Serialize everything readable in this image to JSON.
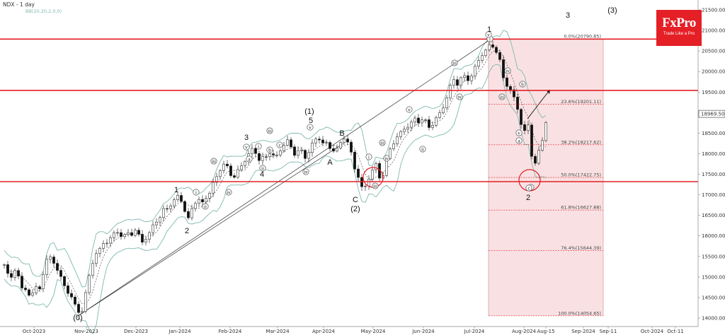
{
  "header": {
    "symbol_label": "NDX - 1 day",
    "indicator_label": "BB(20,20,2,0,0)"
  },
  "logo": {
    "name": "FxPro",
    "tagline": "Trade Like a Pro"
  },
  "colors": {
    "up_candle": "#ffffff",
    "down_candle": "#111111",
    "bands": "#7fb8b0",
    "resistance_lines": "#e41f26",
    "fib_zone": "#f7d7da",
    "fib_lines": "#e41f26"
  },
  "chart_data": {
    "type": "candlestick",
    "title": "NDX - 1 day",
    "ylim": [
      13900,
      21700
    ],
    "y_ticks": [
      "21500.00",
      "21000.00",
      "20500.00",
      "20000.00",
      "19500.00",
      "19000.00",
      "18500.00",
      "18000.00",
      "17500.00",
      "17000.00",
      "16500.00",
      "16000.00",
      "15500.00",
      "15000.00",
      "14500.00",
      "14000.00"
    ],
    "x_ticks": [
      "Oct-2023",
      "Nov-2023",
      "Dec-2023",
      "Jan-2024",
      "Feb-2024",
      "Mar-2024",
      "Apr-2024",
      "May-2024",
      "Jun-2024",
      "Jul-2024",
      "Aug-2024",
      "Aug-15",
      "Sep-2024",
      "Sep-11",
      "Oct-2024",
      "Oct-11"
    ],
    "current_price": "18969.50",
    "horizontal_levels": [
      20790,
      19540,
      17320
    ],
    "fibonacci": [
      {
        "label": "0.0%(20790.85)",
        "value": 20790.85
      },
      {
        "label": "23.6%(19201.11)",
        "value": 19201.11
      },
      {
        "label": "38.2%(18217.62)",
        "value": 18217.62
      },
      {
        "label": "50.0%(17422.75)",
        "value": 17422.75
      },
      {
        "label": "61.8%(16627.88)",
        "value": 16627.88
      },
      {
        "label": "76.4%(15644.39)",
        "value": 15644.39
      },
      {
        "label": "100.0%(14054.65)",
        "value": 14054.65
      }
    ],
    "close_series": [
      [
        0,
        15300
      ],
      [
        4,
        15150
      ],
      [
        8,
        15050
      ],
      [
        12,
        14900
      ],
      [
        16,
        15200
      ],
      [
        20,
        15050
      ],
      [
        24,
        14800
      ],
      [
        28,
        14600
      ],
      [
        32,
        14700
      ],
      [
        36,
        14500
      ],
      [
        40,
        14650
      ],
      [
        44,
        14800
      ],
      [
        48,
        14600
      ],
      [
        52,
        14750
      ],
      [
        56,
        15200
      ],
      [
        60,
        15450
      ],
      [
        64,
        15500
      ],
      [
        68,
        15300
      ],
      [
        72,
        15350
      ],
      [
        76,
        15150
      ],
      [
        80,
        15000
      ],
      [
        84,
        14800
      ],
      [
        88,
        14600
      ],
      [
        92,
        14650
      ],
      [
        96,
        14500
      ],
      [
        100,
        14300
      ],
      [
        104,
        14150
      ],
      [
        108,
        14050
      ],
      [
        112,
        14350
      ],
      [
        116,
        14700
      ],
      [
        120,
        15000
      ],
      [
        124,
        15300
      ],
      [
        128,
        15500
      ],
      [
        132,
        15700
      ],
      [
        136,
        15650
      ],
      [
        140,
        15800
      ],
      [
        144,
        15850
      ],
      [
        148,
        15900
      ],
      [
        152,
        16000
      ],
      [
        156,
        16050
      ],
      [
        160,
        16100
      ],
      [
        164,
        16000
      ],
      [
        168,
        16050
      ],
      [
        172,
        15950
      ],
      [
        176,
        16100
      ],
      [
        180,
        16050
      ],
      [
        184,
        16150
      ],
      [
        188,
        16100
      ],
      [
        192,
        15900
      ],
      [
        196,
        15850
      ],
      [
        200,
        15950
      ],
      [
        204,
        16000
      ],
      [
        208,
        16200
      ],
      [
        212,
        16300
      ],
      [
        216,
        16400
      ],
      [
        220,
        16450
      ],
      [
        224,
        16600
      ],
      [
        228,
        16700
      ],
      [
        232,
        16650
      ],
      [
        236,
        16800
      ],
      [
        240,
        16850
      ],
      [
        244,
        16950
      ],
      [
        248,
        17000
      ],
      [
        252,
        16750
      ],
      [
        256,
        16550
      ],
      [
        260,
        16400
      ],
      [
        264,
        16650
      ],
      [
        268,
        16750
      ],
      [
        272,
        16900
      ],
      [
        276,
        16850
      ],
      [
        280,
        16800
      ],
      [
        284,
        16950
      ],
      [
        288,
        16950
      ],
      [
        292,
        17150
      ],
      [
        296,
        17300
      ],
      [
        300,
        17450
      ],
      [
        304,
        17600
      ],
      [
        308,
        17700
      ],
      [
        312,
        17750
      ],
      [
        316,
        17650
      ],
      [
        320,
        17500
      ],
      [
        324,
        17400
      ],
      [
        328,
        17550
      ],
      [
        332,
        17600
      ],
      [
        336,
        17750
      ],
      [
        340,
        17850
      ],
      [
        344,
        17950
      ],
      [
        348,
        18050
      ],
      [
        352,
        18150
      ],
      [
        356,
        18000
      ],
      [
        360,
        17850
      ],
      [
        364,
        17900
      ],
      [
        368,
        17850
      ],
      [
        372,
        18000
      ],
      [
        376,
        18050
      ],
      [
        380,
        17950
      ],
      [
        384,
        17900
      ],
      [
        388,
        18050
      ],
      [
        392,
        18150
      ],
      [
        396,
        18250
      ],
      [
        400,
        18300
      ],
      [
        404,
        18200
      ],
      [
        408,
        18050
      ],
      [
        412,
        17950
      ],
      [
        416,
        18100
      ],
      [
        420,
        18050
      ],
      [
        424,
        17900
      ],
      [
        428,
        17950
      ],
      [
        432,
        18150
      ],
      [
        436,
        18250
      ],
      [
        440,
        18350
      ],
      [
        444,
        18400
      ],
      [
        448,
        18300
      ],
      [
        452,
        18200
      ],
      [
        456,
        18250
      ],
      [
        460,
        18150
      ],
      [
        464,
        18100
      ],
      [
        468,
        18050
      ],
      [
        472,
        18150
      ],
      [
        476,
        18300
      ],
      [
        480,
        18400
      ],
      [
        484,
        18300
      ],
      [
        488,
        18200
      ],
      [
        492,
        17800
      ],
      [
        496,
        17600
      ],
      [
        500,
        17450
      ],
      [
        504,
        17200
      ],
      [
        508,
        17050
      ],
      [
        512,
        17350
      ],
      [
        516,
        17450
      ],
      [
        520,
        17600
      ],
      [
        524,
        17800
      ],
      [
        528,
        17500
      ],
      [
        532,
        17350
      ],
      [
        536,
        17550
      ],
      [
        540,
        17850
      ],
      [
        544,
        18050
      ],
      [
        548,
        18250
      ],
      [
        552,
        18300
      ],
      [
        556,
        18450
      ],
      [
        560,
        18500
      ],
      [
        564,
        18600
      ],
      [
        568,
        18650
      ],
      [
        572,
        18700
      ],
      [
        576,
        18750
      ],
      [
        580,
        18850
      ],
      [
        584,
        18800
      ],
      [
        588,
        18750
      ],
      [
        592,
        18900
      ],
      [
        596,
        18750
      ],
      [
        600,
        18650
      ],
      [
        604,
        18700
      ],
      [
        608,
        18800
      ],
      [
        612,
        18900
      ],
      [
        616,
        19000
      ],
      [
        620,
        19150
      ],
      [
        624,
        19300
      ],
      [
        628,
        19550
      ],
      [
        632,
        19700
      ],
      [
        636,
        19850
      ],
      [
        640,
        19700
      ],
      [
        644,
        19800
      ],
      [
        648,
        19900
      ],
      [
        652,
        19850
      ],
      [
        656,
        19800
      ],
      [
        660,
        19900
      ],
      [
        664,
        20050
      ],
      [
        668,
        20200
      ],
      [
        672,
        20350
      ],
      [
        676,
        20450
      ],
      [
        680,
        20500
      ],
      [
        684,
        20600
      ],
      [
        688,
        20700
      ],
      [
        692,
        20550
      ],
      [
        696,
        20450
      ],
      [
        700,
        20250
      ],
      [
        704,
        19900
      ],
      [
        708,
        19700
      ],
      [
        712,
        19650
      ],
      [
        716,
        19500
      ],
      [
        720,
        19350
      ],
      [
        724,
        19200
      ],
      [
        728,
        18850
      ],
      [
        732,
        18600
      ],
      [
        736,
        18500
      ],
      [
        740,
        18700
      ],
      [
        744,
        18100
      ],
      [
        748,
        17600
      ],
      [
        752,
        17900
      ],
      [
        756,
        18100
      ],
      [
        760,
        18350
      ],
      [
        764,
        18700
      ],
      [
        768,
        19000
      ]
    ],
    "wave_labels": [
      {
        "text": "(0)",
        "kind": "major"
      },
      {
        "text": "1",
        "kind": "major"
      },
      {
        "text": "2",
        "kind": "major"
      },
      {
        "text": "3",
        "kind": "major"
      },
      {
        "text": "4",
        "kind": "major"
      },
      {
        "text": "(1)",
        "kind": "major"
      },
      {
        "text": "5",
        "kind": "major"
      },
      {
        "text": "A",
        "kind": "major"
      },
      {
        "text": "B",
        "kind": "major"
      },
      {
        "text": "C",
        "kind": "major"
      },
      {
        "text": "(2)",
        "kind": "major"
      },
      {
        "text": "1",
        "kind": "major"
      },
      {
        "text": "2",
        "kind": "major"
      },
      {
        "text": "3",
        "kind": "major"
      },
      {
        "text": "(3)",
        "kind": "major"
      },
      {
        "text": "i",
        "kind": "minor"
      },
      {
        "text": "ii",
        "kind": "minor"
      },
      {
        "text": "iii",
        "kind": "minor"
      },
      {
        "text": "iv",
        "kind": "minor"
      },
      {
        "text": "v",
        "kind": "minor"
      },
      {
        "text": "a",
        "kind": "minor"
      },
      {
        "text": "b",
        "kind": "minor"
      },
      {
        "text": "c",
        "kind": "minor"
      }
    ]
  }
}
